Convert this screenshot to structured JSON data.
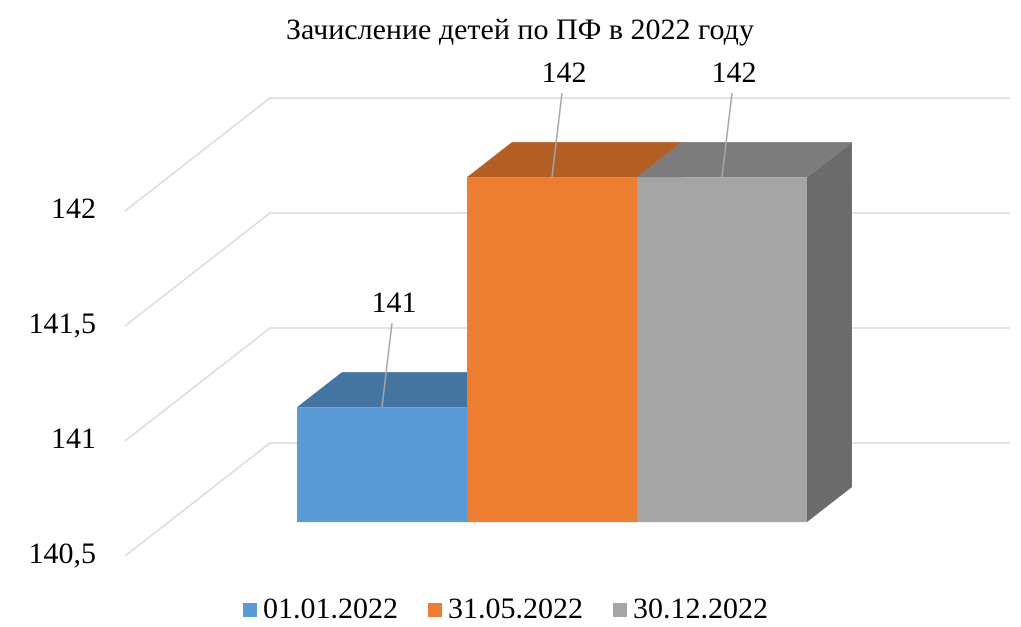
{
  "chart_data": {
    "type": "bar3d",
    "title": "Зачисление детей по ПФ в 2022 году",
    "categories": [
      null
    ],
    "series": [
      {
        "name": "01.01.2022",
        "color": "#5b9bd5",
        "values": [
          141
        ]
      },
      {
        "name": "31.05.2022",
        "color": "#ed7d31",
        "values": [
          142
        ]
      },
      {
        "name": "30.12.2022",
        "color": "#a5a5a5",
        "values": [
          142
        ]
      }
    ],
    "ylim": [
      140.5,
      142.1
    ],
    "yticks": [
      {
        "value": 140.5,
        "label": "140,5"
      },
      141,
      {
        "value": 141.5,
        "label": "141,5"
      },
      142
    ],
    "grid": true,
    "legend": "bottom"
  }
}
